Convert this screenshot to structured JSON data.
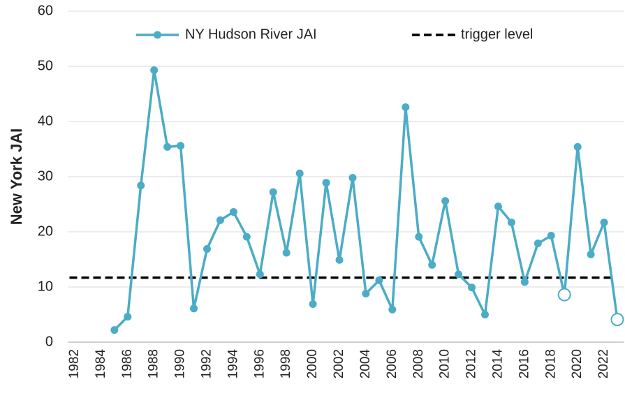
{
  "chart_data": {
    "type": "line",
    "y_axis_label": "New York JAI",
    "categories": [
      "1982",
      null,
      "1984",
      null,
      "1986",
      null,
      "1988",
      null,
      "1990",
      null,
      "1992",
      null,
      "1994",
      null,
      "1996",
      null,
      "1998",
      null,
      "2000",
      null,
      "2002",
      null,
      "2004",
      null,
      "2006",
      null,
      "2008",
      null,
      "2010",
      null,
      "2012",
      null,
      "2014",
      null,
      "2016",
      null,
      "2018",
      null,
      "2020",
      null,
      "2022",
      null
    ],
    "series": [
      {
        "name": "NY Hudson River JAI",
        "color": "#4bacc6",
        "values": [
          null,
          null,
          null,
          2.2,
          4.6,
          28.4,
          49.3,
          35.4,
          35.6,
          6.1,
          16.9,
          22.1,
          23.6,
          19.1,
          12.3,
          27.2,
          16.2,
          30.6,
          6.9,
          28.9,
          14.9,
          29.8,
          8.8,
          11.2,
          5.9,
          42.6,
          19.1,
          14.0,
          25.6,
          12.3,
          9.9,
          5.0,
          24.6,
          21.7,
          10.9,
          17.9,
          19.3,
          8.6,
          35.4,
          15.9,
          21.7,
          4.1
        ],
        "open_marker_index": [
          37,
          41
        ]
      }
    ],
    "reference_lines": [
      {
        "name": "trigger level",
        "value": 11.7,
        "color": "#000000"
      }
    ],
    "ylim": [
      0,
      60
    ],
    "yticks": [
      0,
      10,
      20,
      30,
      40,
      50,
      60
    ],
    "grid": true,
    "legend": "top"
  }
}
